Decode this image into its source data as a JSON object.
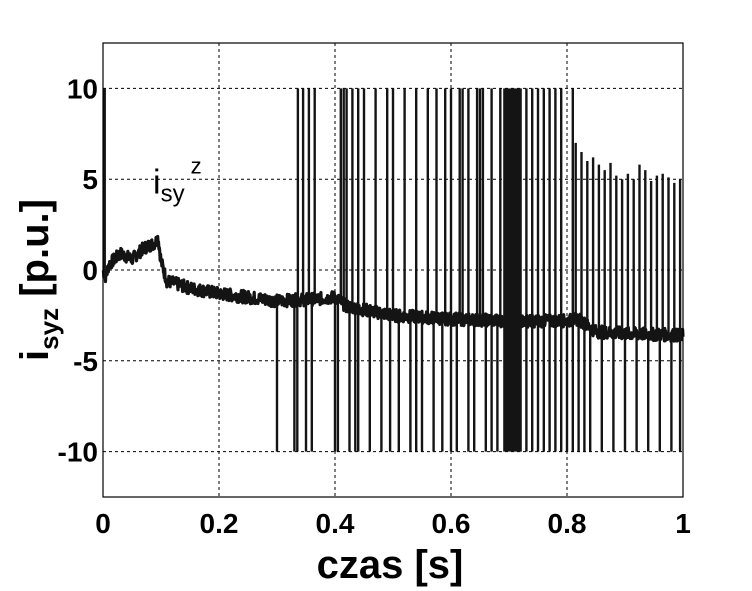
{
  "chart_data": {
    "type": "line",
    "xlabel": "czas [s]",
    "ylabel": {
      "main": "i",
      "sub": "syz",
      "rest": " [p.u.]"
    },
    "annotation": {
      "main": "i",
      "sub": "sy",
      "sup": "z",
      "x": 0.1,
      "y": 4.5
    },
    "xlim": [
      0,
      1
    ],
    "ylim": [
      -12.5,
      12.5
    ],
    "xticks": [
      0,
      0.2,
      0.4,
      0.6,
      0.8,
      1
    ],
    "xtick_labels": [
      "0",
      "0.2",
      "0.4",
      "0.6",
      "0.8",
      "1"
    ],
    "yticks": [
      -10,
      -5,
      0,
      5,
      10
    ],
    "ytick_labels": [
      "-10",
      "-5",
      "0",
      "5",
      "10"
    ],
    "grid": true,
    "series": [
      {
        "baseline": [
          [
            0.0,
            0.0
          ],
          [
            0.005,
            -0.4
          ],
          [
            0.01,
            0.3
          ],
          [
            0.03,
            0.9
          ],
          [
            0.05,
            0.6
          ],
          [
            0.07,
            1.2
          ],
          [
            0.09,
            1.5
          ],
          [
            0.095,
            1.8
          ],
          [
            0.1,
            0.5
          ],
          [
            0.11,
            -0.6
          ],
          [
            0.15,
            -1.0
          ],
          [
            0.2,
            -1.3
          ],
          [
            0.3,
            -1.7
          ],
          [
            0.37,
            -1.6
          ],
          [
            0.4,
            -1.5
          ],
          [
            0.42,
            -2.0
          ],
          [
            0.5,
            -2.5
          ],
          [
            0.6,
            -2.7
          ],
          [
            0.7,
            -2.8
          ],
          [
            0.8,
            -2.8
          ],
          [
            0.82,
            -2.7
          ],
          [
            0.85,
            -3.4
          ],
          [
            0.9,
            -3.5
          ],
          [
            1.0,
            -3.6
          ]
        ],
        "noise_amplitude": 0.35,
        "spikes_up_to_10": [
          0.002,
          0.003,
          0.336,
          0.345,
          0.355,
          0.365,
          0.41,
          0.415,
          0.42,
          0.43,
          0.44,
          0.45,
          0.47,
          0.49,
          0.5,
          0.52,
          0.54,
          0.56,
          0.575,
          0.59,
          0.6,
          0.615,
          0.62,
          0.63,
          0.645,
          0.65,
          0.655,
          0.67,
          0.685,
          0.72,
          0.73,
          0.74,
          0.75,
          0.76,
          0.77,
          0.78,
          0.79,
          0.81
        ],
        "spikes_down_to_minus_10": [
          0.3,
          0.33,
          0.335,
          0.35,
          0.36,
          0.4,
          0.405,
          0.425,
          0.435,
          0.44,
          0.46,
          0.48,
          0.495,
          0.51,
          0.53,
          0.54,
          0.55,
          0.57,
          0.585,
          0.6,
          0.61,
          0.63,
          0.64,
          0.66,
          0.67,
          0.68,
          0.72,
          0.73,
          0.74,
          0.75,
          0.76,
          0.77,
          0.78,
          0.79,
          0.8,
          0.81,
          0.82,
          0.83
        ],
        "dense_band": [
          0.69,
          0.72
        ],
        "late_spikes_up": [
          [
            0.815,
            7.0
          ],
          [
            0.825,
            6.5
          ],
          [
            0.835,
            6.0
          ],
          [
            0.845,
            6.2
          ],
          [
            0.855,
            5.8
          ],
          [
            0.865,
            5.5
          ],
          [
            0.875,
            5.9
          ],
          [
            0.885,
            5.2
          ],
          [
            0.895,
            5.0
          ],
          [
            0.905,
            5.3
          ],
          [
            0.915,
            5.0
          ],
          [
            0.925,
            5.8
          ],
          [
            0.935,
            5.5
          ],
          [
            0.945,
            4.9
          ],
          [
            0.955,
            5.2
          ],
          [
            0.965,
            5.3
          ],
          [
            0.975,
            5.1
          ],
          [
            0.985,
            4.8
          ],
          [
            0.995,
            5.0
          ]
        ],
        "late_spikes_down_to_minus_10": [
          0.84,
          0.86,
          0.88,
          0.9,
          0.92,
          0.94,
          0.96,
          0.98,
          0.995
        ]
      }
    ]
  }
}
